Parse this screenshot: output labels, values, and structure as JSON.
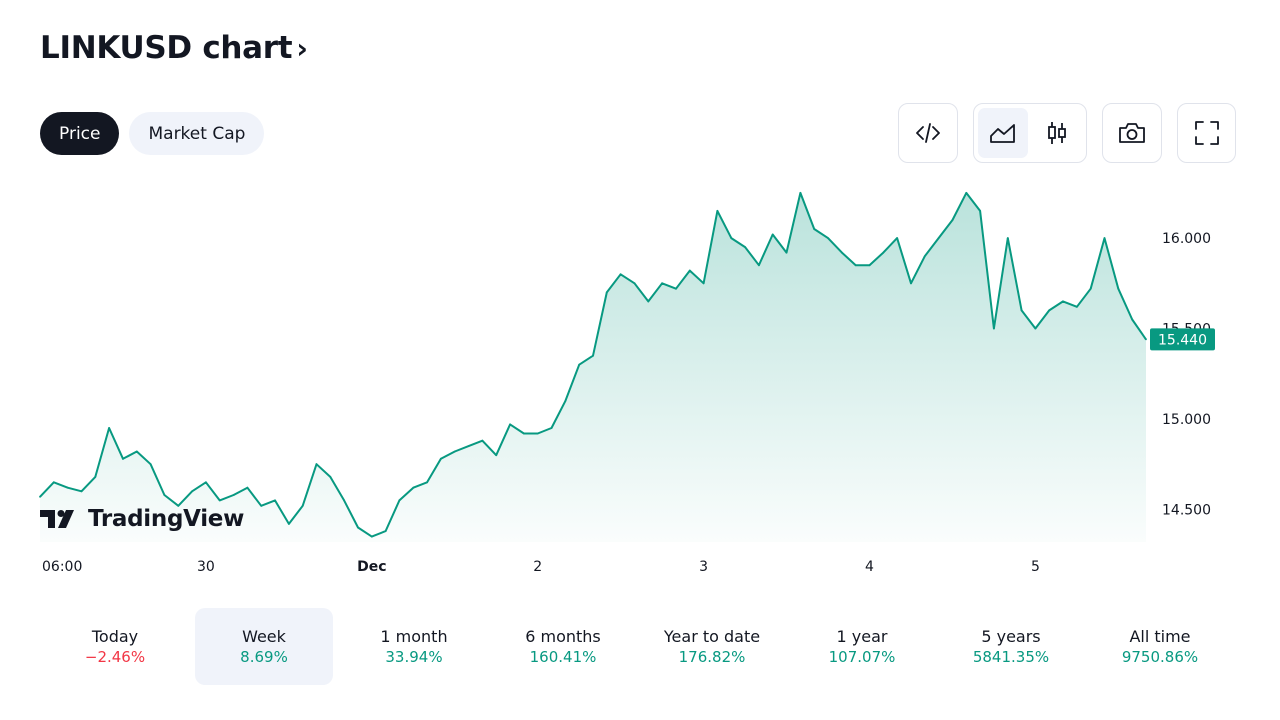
{
  "header": {
    "title": "LINKUSD chart",
    "chevron": "›"
  },
  "tabs": [
    {
      "label": "Price",
      "active": true
    },
    {
      "label": "Market Cap",
      "active": false
    }
  ],
  "toolbar": {
    "embed_icon": "code-icon",
    "area_icon": "area-chart-icon",
    "candles_icon": "candlestick-icon",
    "snapshot_icon": "camera-icon",
    "fullscreen_icon": "fullscreen-icon",
    "selected_style": "area"
  },
  "logo": {
    "text": "TradingView"
  },
  "colors": {
    "line": "#089981",
    "fill": "#089981",
    "negative": "#f23645",
    "selected_bg": "#f0f3fa"
  },
  "chart_data": {
    "type": "area",
    "title": "LINKUSD",
    "xlabel": "",
    "ylabel": "",
    "x_ticks": [
      "06:00",
      "30",
      "Dec",
      "2",
      "3",
      "4",
      "5"
    ],
    "x_tick_index": [
      0.2,
      12,
      24,
      36,
      48,
      60,
      72
    ],
    "y_ticks": [
      14.5,
      15.0,
      15.5,
      16.0
    ],
    "y_tick_labels": [
      "14.500",
      "15.000",
      "15.500",
      "16.000"
    ],
    "ylim": [
      14.32,
      16.31
    ],
    "last_price": 15.44,
    "last_price_label": "15.440",
    "grid": false,
    "series": [
      {
        "values": [
          14.57,
          14.65,
          14.62,
          14.6,
          14.68,
          14.95,
          14.78,
          14.82,
          14.75,
          14.58,
          14.52,
          14.6,
          14.65,
          14.55,
          14.58,
          14.62,
          14.52,
          14.55,
          14.42,
          14.52,
          14.75,
          14.68,
          14.55,
          14.4,
          14.35,
          14.38,
          14.55,
          14.62,
          14.65,
          14.78,
          14.82,
          14.85,
          14.88,
          14.8,
          14.97,
          14.92,
          14.92,
          14.95,
          15.1,
          15.3,
          15.35,
          15.7,
          15.8,
          15.75,
          15.65,
          15.75,
          15.72,
          15.82,
          15.75,
          16.15,
          16.0,
          15.95,
          15.85,
          16.02,
          15.92,
          16.25,
          16.05,
          16.0,
          15.92,
          15.85,
          15.85,
          15.92,
          16.0,
          15.75,
          15.9,
          16.0,
          16.1,
          16.25,
          16.15,
          15.5,
          16.0,
          15.6,
          15.5,
          15.6,
          15.65,
          15.62,
          15.72,
          16.0,
          15.72,
          15.55,
          15.44
        ]
      }
    ]
  },
  "ranges": [
    {
      "label": "Today",
      "value": "−2.46%",
      "trend": "neg"
    },
    {
      "label": "Week",
      "value": "8.69%",
      "trend": "pos",
      "selected": true
    },
    {
      "label": "1 month",
      "value": "33.94%",
      "trend": "pos"
    },
    {
      "label": "6 months",
      "value": "160.41%",
      "trend": "pos"
    },
    {
      "label": "Year to date",
      "value": "176.82%",
      "trend": "pos"
    },
    {
      "label": "1 year",
      "value": "107.07%",
      "trend": "pos"
    },
    {
      "label": "5 years",
      "value": "5841.35%",
      "trend": "pos"
    },
    {
      "label": "All time",
      "value": "9750.86%",
      "trend": "pos"
    }
  ]
}
